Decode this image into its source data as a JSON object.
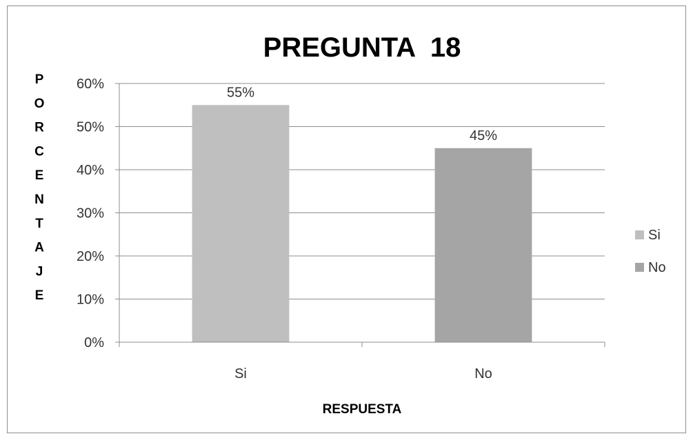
{
  "chart_data": {
    "type": "bar",
    "title": "PREGUNTA  18",
    "xlabel": "RESPUESTA",
    "ylabel": "PORCENTAJE",
    "categories": [
      "Si",
      "No"
    ],
    "values": [
      55,
      45
    ],
    "data_labels": [
      "55%",
      "45%"
    ],
    "colors": [
      "#bfbfbf",
      "#a5a5a5"
    ],
    "ylim": [
      0,
      60
    ],
    "yticks": [
      0,
      10,
      20,
      30,
      40,
      50,
      60
    ],
    "ytick_labels": [
      "0%",
      "10%",
      "20%",
      "30%",
      "40%",
      "50%",
      "60%"
    ],
    "grid": true,
    "legend": {
      "placement": "right",
      "entries": [
        "Si",
        "No"
      ]
    }
  }
}
